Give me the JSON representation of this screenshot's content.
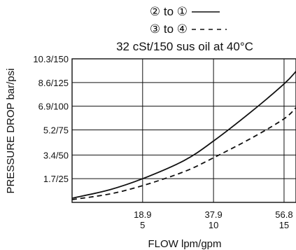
{
  "chart_data": {
    "type": "line",
    "title": "32 cSt/150 sus oil at 40°C",
    "legend": [
      {
        "label": "② to ①",
        "style": "solid"
      },
      {
        "label": "③ to ④",
        "style": "dashed"
      }
    ],
    "legend_placement": "top-center",
    "xlabel": "FLOW lpm/gpm",
    "ylabel": "PRESSURE DROP bar/psi",
    "xlim": [
      0,
      60
    ],
    "ylim": [
      0,
      10.3
    ],
    "x_ticks": [
      {
        "value": 18.9,
        "label_top": "18.9",
        "label_bottom": "5"
      },
      {
        "value": 37.9,
        "label_top": "37.9",
        "label_bottom": "10"
      },
      {
        "value": 56.8,
        "label_top": "56.8",
        "label_bottom": "15"
      }
    ],
    "y_ticks": [
      {
        "value": 1.7,
        "label": "1.7/25"
      },
      {
        "value": 3.4,
        "label": "3.4/50"
      },
      {
        "value": 5.2,
        "label": "5.2/75"
      },
      {
        "value": 6.9,
        "label": "6.9/100"
      },
      {
        "value": 8.6,
        "label": "8.6/125"
      },
      {
        "value": 10.3,
        "label": "10.3/150"
      }
    ],
    "grid": true,
    "series": [
      {
        "style": "solid",
        "x": [
          0,
          10,
          18.9,
          30,
          37.9,
          48,
          56.8,
          60
        ],
        "y": [
          0.3,
          0.9,
          1.7,
          3.0,
          4.4,
          6.5,
          8.5,
          9.4
        ]
      },
      {
        "style": "dashed",
        "x": [
          0,
          10,
          18.9,
          30,
          37.9,
          48,
          56.8,
          60
        ],
        "y": [
          0.2,
          0.6,
          1.2,
          2.2,
          3.2,
          4.6,
          6.0,
          6.8
        ]
      }
    ]
  }
}
